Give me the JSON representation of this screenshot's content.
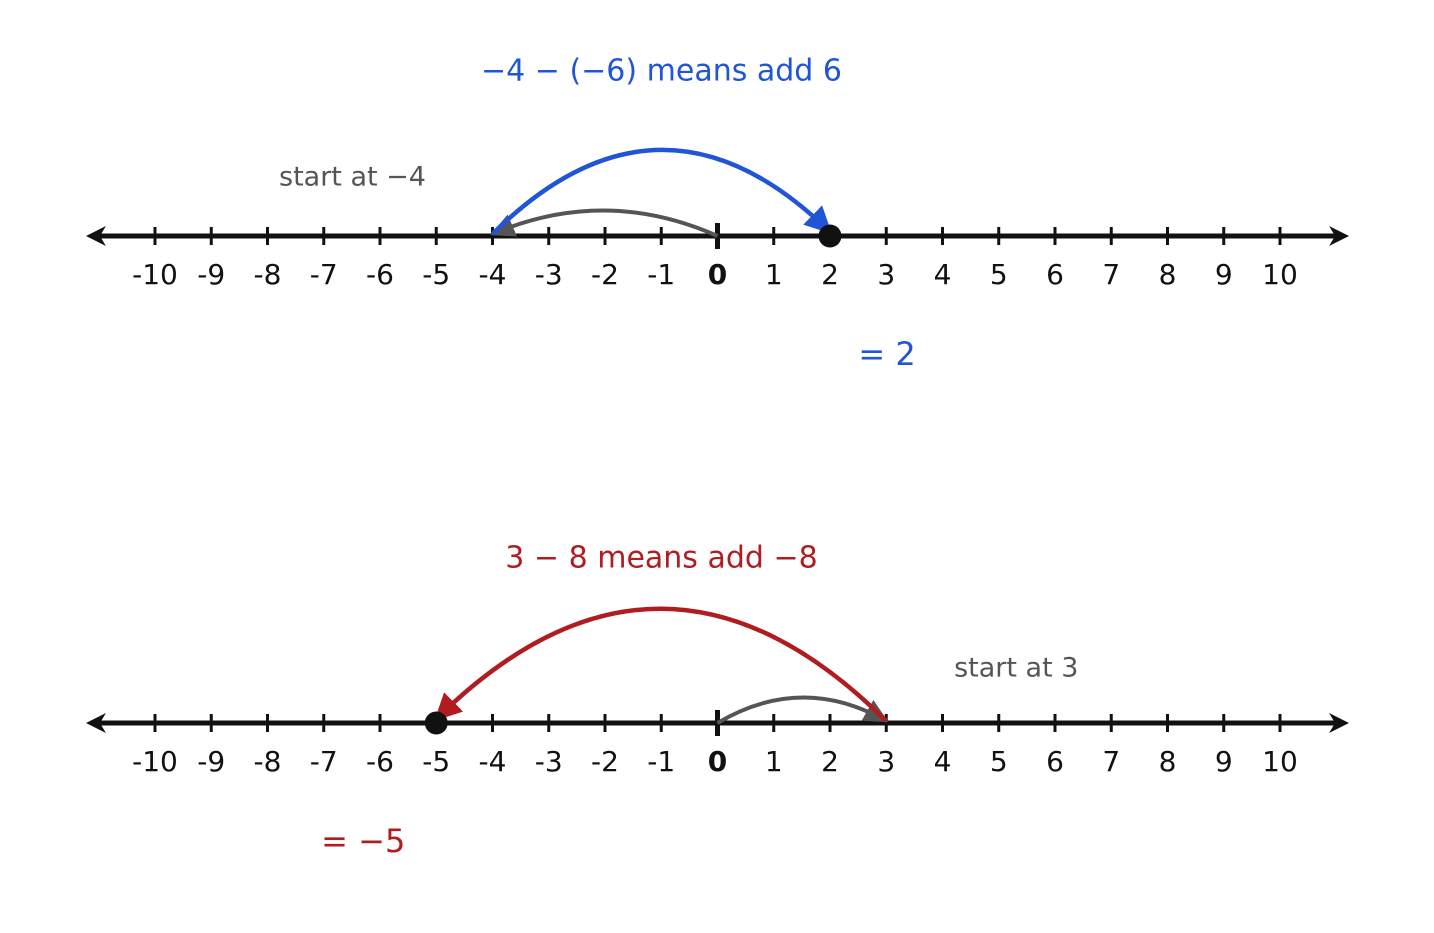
{
  "lines": [
    {
      "title": "−4 − (−6) means add 6",
      "start_label": "start at −4",
      "result": "= 2",
      "start": -4,
      "end": 2,
      "color": "#1f55d6",
      "ticks": [
        -10,
        -9,
        -8,
        -7,
        -6,
        -5,
        -4,
        -3,
        -2,
        -1,
        0,
        1,
        2,
        3,
        4,
        5,
        6,
        7,
        8,
        9,
        10
      ]
    },
    {
      "title": "3 − 8 means add −8",
      "start_label": "start at 3",
      "result": "= −5",
      "start": 3,
      "end": -5,
      "color": "#b01c20",
      "ticks": [
        -10,
        -9,
        -8,
        -7,
        -6,
        -5,
        -4,
        -3,
        -2,
        -1,
        0,
        1,
        2,
        3,
        4,
        5,
        6,
        7,
        8,
        9,
        10
      ]
    }
  ]
}
